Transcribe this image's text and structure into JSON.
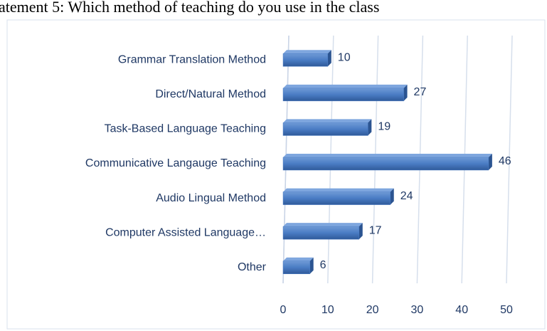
{
  "chart_data": {
    "type": "bar",
    "orientation": "horizontal",
    "title": "atement 5: Which method of teaching do you use in the class",
    "categories": [
      "Grammar Translation Method",
      "Direct/Natural Method",
      "Task-Based Language Teaching",
      "Communicative Langauge Teaching",
      "Audio Lingual Method",
      "Computer Assisted Language…",
      "Other"
    ],
    "values": [
      10,
      27,
      19,
      46,
      24,
      17,
      6
    ],
    "color": "#4a7cc4",
    "xlim": [
      0,
      50
    ],
    "xticks": [
      0,
      10,
      20,
      30,
      40,
      50
    ],
    "grid": true
  }
}
